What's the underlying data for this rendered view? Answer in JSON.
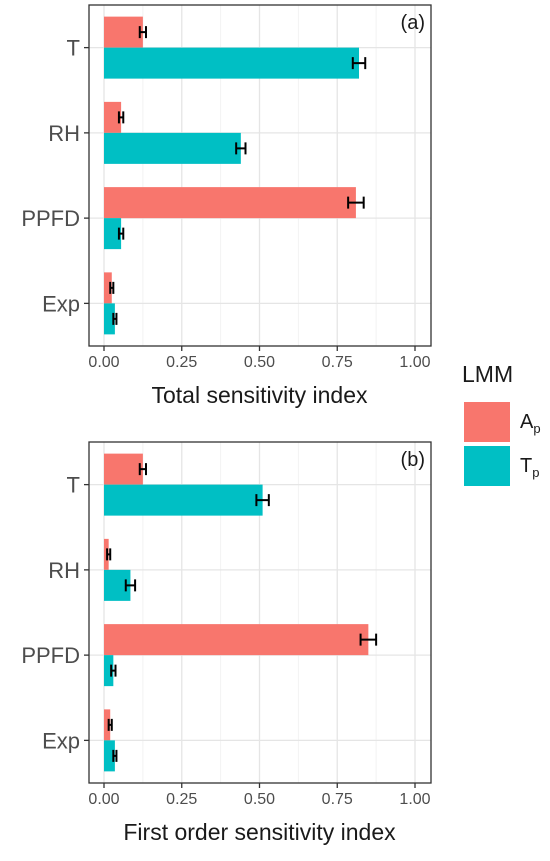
{
  "figure": {
    "legend": {
      "title": "LMM",
      "entries": [
        {
          "main": "A",
          "sub": "p",
          "color": "#F8766D"
        },
        {
          "main": "T",
          "sub": "p",
          "color": "#00BFC4"
        }
      ]
    }
  },
  "chart_data": [
    {
      "type": "bar",
      "orientation": "horizontal",
      "panel_label": "(a)",
      "xlabel": "Total sensitivity index",
      "ylabel": "",
      "xlim": [
        0,
        1
      ],
      "x_ticks": [
        "0.00",
        "0.25",
        "0.50",
        "0.75",
        "1.00"
      ],
      "x_tick_values": [
        0,
        0.25,
        0.5,
        0.75,
        1
      ],
      "categories": [
        "T",
        "RH",
        "PPFD",
        "Exp"
      ],
      "grid": true,
      "series": [
        {
          "name": "Ap",
          "color": "#F8766D",
          "values": [
            0.125,
            0.055,
            0.81,
            0.025
          ],
          "errors": [
            0.01,
            0.007,
            0.025,
            0.005
          ]
        },
        {
          "name": "Tp",
          "color": "#00BFC4",
          "values": [
            0.82,
            0.44,
            0.055,
            0.035
          ],
          "errors": [
            0.02,
            0.015,
            0.007,
            0.005
          ]
        }
      ]
    },
    {
      "type": "bar",
      "orientation": "horizontal",
      "panel_label": "(b)",
      "xlabel": "First order sensitivity index",
      "ylabel": "",
      "xlim": [
        0,
        1
      ],
      "x_ticks": [
        "0.00",
        "0.25",
        "0.50",
        "0.75",
        "1.00"
      ],
      "x_tick_values": [
        0,
        0.25,
        0.5,
        0.75,
        1
      ],
      "categories": [
        "T",
        "RH",
        "PPFD",
        "Exp"
      ],
      "grid": true,
      "series": [
        {
          "name": "Ap",
          "color": "#F8766D",
          "values": [
            0.125,
            0.015,
            0.85,
            0.02
          ],
          "errors": [
            0.01,
            0.005,
            0.025,
            0.005
          ]
        },
        {
          "name": "Tp",
          "color": "#00BFC4",
          "values": [
            0.51,
            0.085,
            0.03,
            0.035
          ],
          "errors": [
            0.02,
            0.015,
            0.007,
            0.005
          ]
        }
      ]
    }
  ]
}
